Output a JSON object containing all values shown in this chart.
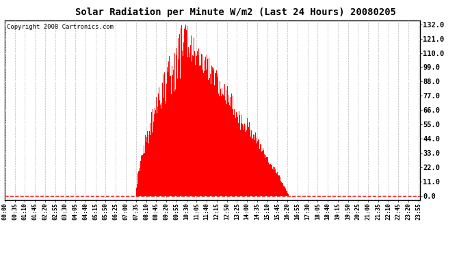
{
  "title": "Solar Radiation per Minute W/m2 (Last 24 Hours) 20080205",
  "copyright": "Copyright 2008 Cartronics.com",
  "bar_color": "#ff0000",
  "bg_color": "#ffffff",
  "grid_color": "#bbbbbb",
  "yticks": [
    0.0,
    11.0,
    22.0,
    33.0,
    44.0,
    55.0,
    66.0,
    77.0,
    88.0,
    99.0,
    110.0,
    121.0,
    132.0
  ],
  "ymax": 135,
  "ymin": -3,
  "num_minutes": 1440,
  "sunrise_minute": 455,
  "sunset_minute": 985,
  "peak_minute": 630,
  "peak_value": 132,
  "x_tick_interval": 35,
  "x_tick_start": 0,
  "title_fontsize": 10,
  "copyright_fontsize": 6.5,
  "ytick_fontsize": 7.5,
  "xtick_fontsize": 6
}
